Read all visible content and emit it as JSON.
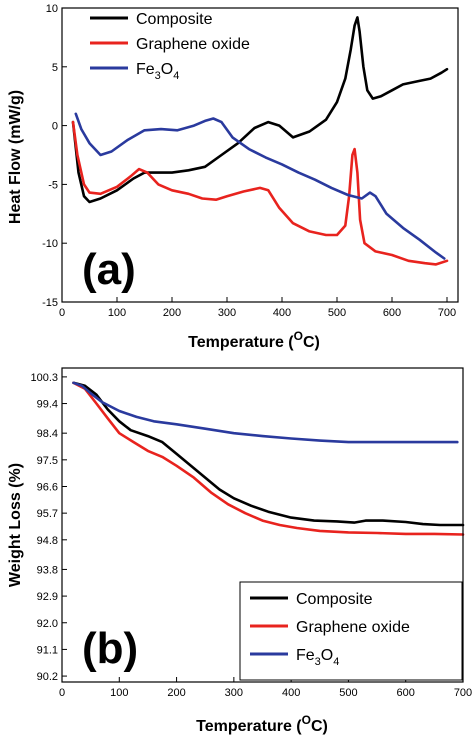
{
  "chart_data": [
    {
      "type": "line",
      "panel_label": "(a)",
      "xlabel": "Temperature (",
      "xlabel_unit_super": "O",
      "xlabel_unit_tail": "C)",
      "ylabel": "Heat Flow (mW/g)",
      "xlim": [
        0,
        720
      ],
      "ylim": [
        -15,
        10
      ],
      "xticks": [
        "0",
        "100",
        "200",
        "300",
        "400",
        "500",
        "600",
        "700"
      ],
      "yticks": [
        "10",
        "5",
        "0",
        "-5",
        "-10",
        "-15"
      ],
      "legend_position": "top-left",
      "series": [
        {
          "name": "Composite",
          "color": "#000000",
          "points": [
            [
              20,
              0.3
            ],
            [
              30,
              -4
            ],
            [
              40,
              -6
            ],
            [
              50,
              -6.5
            ],
            [
              70,
              -6.2
            ],
            [
              100,
              -5.5
            ],
            [
              130,
              -4.5
            ],
            [
              150,
              -4
            ],
            [
              170,
              -4
            ],
            [
              200,
              -4
            ],
            [
              230,
              -3.8
            ],
            [
              260,
              -3.5
            ],
            [
              290,
              -2.5
            ],
            [
              320,
              -1.5
            ],
            [
              350,
              -0.2
            ],
            [
              375,
              0.3
            ],
            [
              395,
              0
            ],
            [
              420,
              -1
            ],
            [
              450,
              -0.5
            ],
            [
              480,
              0.5
            ],
            [
              500,
              2
            ],
            [
              515,
              4
            ],
            [
              525,
              6.5
            ],
            [
              532,
              8.5
            ],
            [
              537,
              9.2
            ],
            [
              541,
              8
            ],
            [
              548,
              5
            ],
            [
              555,
              3
            ],
            [
              565,
              2.3
            ],
            [
              580,
              2.5
            ],
            [
              600,
              3
            ],
            [
              620,
              3.5
            ],
            [
              650,
              3.8
            ],
            [
              670,
              4
            ],
            [
              690,
              4.5
            ],
            [
              700,
              4.8
            ]
          ]
        },
        {
          "name": "Graphene oxide",
          "color": "#e8231e",
          "points": [
            [
              20,
              0.3
            ],
            [
              28,
              -2.5
            ],
            [
              40,
              -5
            ],
            [
              50,
              -5.7
            ],
            [
              70,
              -5.8
            ],
            [
              100,
              -5.2
            ],
            [
              125,
              -4.3
            ],
            [
              140,
              -3.7
            ],
            [
              155,
              -4
            ],
            [
              175,
              -5
            ],
            [
              200,
              -5.5
            ],
            [
              230,
              -5.8
            ],
            [
              255,
              -6.2
            ],
            [
              280,
              -6.3
            ],
            [
              300,
              -6
            ],
            [
              330,
              -5.6
            ],
            [
              360,
              -5.3
            ],
            [
              375,
              -5.5
            ],
            [
              395,
              -7
            ],
            [
              420,
              -8.3
            ],
            [
              450,
              -9
            ],
            [
              480,
              -9.3
            ],
            [
              500,
              -9.3
            ],
            [
              515,
              -8.5
            ],
            [
              522,
              -6
            ],
            [
              528,
              -2.5
            ],
            [
              532,
              -2
            ],
            [
              537,
              -4
            ],
            [
              542,
              -8
            ],
            [
              550,
              -10
            ],
            [
              570,
              -10.7
            ],
            [
              600,
              -11
            ],
            [
              630,
              -11.5
            ],
            [
              660,
              -11.7
            ],
            [
              680,
              -11.8
            ],
            [
              700,
              -11.5
            ]
          ]
        },
        {
          "name": "Fe3O4",
          "legend_base": "Fe",
          "legend_sub1": "3",
          "legend_mid": "O",
          "legend_sub2": "4",
          "color": "#2a3a9e",
          "points": [
            [
              25,
              1
            ],
            [
              35,
              -0.3
            ],
            [
              50,
              -1.5
            ],
            [
              70,
              -2.5
            ],
            [
              90,
              -2.2
            ],
            [
              120,
              -1.2
            ],
            [
              150,
              -0.4
            ],
            [
              180,
              -0.3
            ],
            [
              210,
              -0.4
            ],
            [
              240,
              0
            ],
            [
              260,
              0.4
            ],
            [
              275,
              0.6
            ],
            [
              290,
              0.3
            ],
            [
              310,
              -1
            ],
            [
              340,
              -2
            ],
            [
              370,
              -2.7
            ],
            [
              400,
              -3.3
            ],
            [
              430,
              -4
            ],
            [
              460,
              -4.6
            ],
            [
              490,
              -5.3
            ],
            [
              520,
              -5.9
            ],
            [
              545,
              -6.2
            ],
            [
              560,
              -5.7
            ],
            [
              570,
              -6
            ],
            [
              590,
              -7.5
            ],
            [
              620,
              -8.7
            ],
            [
              650,
              -9.7
            ],
            [
              680,
              -10.8
            ],
            [
              695,
              -11.3
            ]
          ]
        }
      ]
    },
    {
      "type": "line",
      "panel_label": "(b)",
      "xlabel": "Temperature (",
      "xlabel_unit_super": "O",
      "xlabel_unit_tail": "C)",
      "ylabel": "Weight Loss (%)",
      "xlim": [
        0,
        700
      ],
      "ylim": [
        90.0,
        100.6
      ],
      "xticks": [
        "0",
        "100",
        "200",
        "300",
        "400",
        "500",
        "600",
        "700"
      ],
      "yticks": [
        "100.3",
        "99.4",
        "98.4",
        "97.5",
        "96.6",
        "95.7",
        "94.8",
        "93.8",
        "92.9",
        "92.0",
        "91.1",
        "90.2"
      ],
      "ytick_values": [
        100.3,
        99.4,
        98.4,
        97.5,
        96.6,
        95.7,
        94.8,
        93.8,
        92.9,
        92.0,
        91.1,
        90.2
      ],
      "legend_position": "bottom-right",
      "series": [
        {
          "name": "Composite",
          "color": "#000000",
          "points": [
            [
              20,
              100.1
            ],
            [
              40,
              100.0
            ],
            [
              60,
              99.7
            ],
            [
              80,
              99.2
            ],
            [
              100,
              98.8
            ],
            [
              120,
              98.5
            ],
            [
              150,
              98.3
            ],
            [
              175,
              98.1
            ],
            [
              200,
              97.7
            ],
            [
              225,
              97.3
            ],
            [
              250,
              96.9
            ],
            [
              275,
              96.5
            ],
            [
              300,
              96.2
            ],
            [
              330,
              95.95
            ],
            [
              360,
              95.75
            ],
            [
              400,
              95.55
            ],
            [
              440,
              95.45
            ],
            [
              480,
              95.42
            ],
            [
              510,
              95.38
            ],
            [
              530,
              95.45
            ],
            [
              560,
              95.45
            ],
            [
              600,
              95.4
            ],
            [
              630,
              95.33
            ],
            [
              660,
              95.3
            ],
            [
              690,
              95.3
            ],
            [
              700,
              95.3
            ]
          ]
        },
        {
          "name": "Graphene oxide",
          "color": "#e8231e",
          "points": [
            [
              20,
              100.1
            ],
            [
              40,
              99.9
            ],
            [
              60,
              99.4
            ],
            [
              80,
              98.9
            ],
            [
              100,
              98.4
            ],
            [
              125,
              98.1
            ],
            [
              150,
              97.8
            ],
            [
              175,
              97.6
            ],
            [
              200,
              97.3
            ],
            [
              230,
              96.9
            ],
            [
              260,
              96.4
            ],
            [
              290,
              96.0
            ],
            [
              320,
              95.7
            ],
            [
              350,
              95.45
            ],
            [
              380,
              95.3
            ],
            [
              410,
              95.2
            ],
            [
              450,
              95.1
            ],
            [
              500,
              95.05
            ],
            [
              550,
              95.03
            ],
            [
              600,
              95.0
            ],
            [
              650,
              95.0
            ],
            [
              700,
              94.98
            ]
          ]
        },
        {
          "name": "Fe3O4",
          "legend_base": "Fe",
          "legend_sub1": "3",
          "legend_mid": "O",
          "legend_sub2": "4",
          "color": "#2a3a9e",
          "points": [
            [
              20,
              100.1
            ],
            [
              35,
              100.0
            ],
            [
              50,
              99.75
            ],
            [
              70,
              99.45
            ],
            [
              100,
              99.15
            ],
            [
              130,
              98.95
            ],
            [
              160,
              98.8
            ],
            [
              200,
              98.7
            ],
            [
              250,
              98.55
            ],
            [
              300,
              98.4
            ],
            [
              350,
              98.3
            ],
            [
              400,
              98.22
            ],
            [
              450,
              98.15
            ],
            [
              500,
              98.1
            ],
            [
              550,
              98.1
            ],
            [
              600,
              98.1
            ],
            [
              650,
              98.1
            ],
            [
              690,
              98.1
            ]
          ]
        }
      ]
    }
  ]
}
